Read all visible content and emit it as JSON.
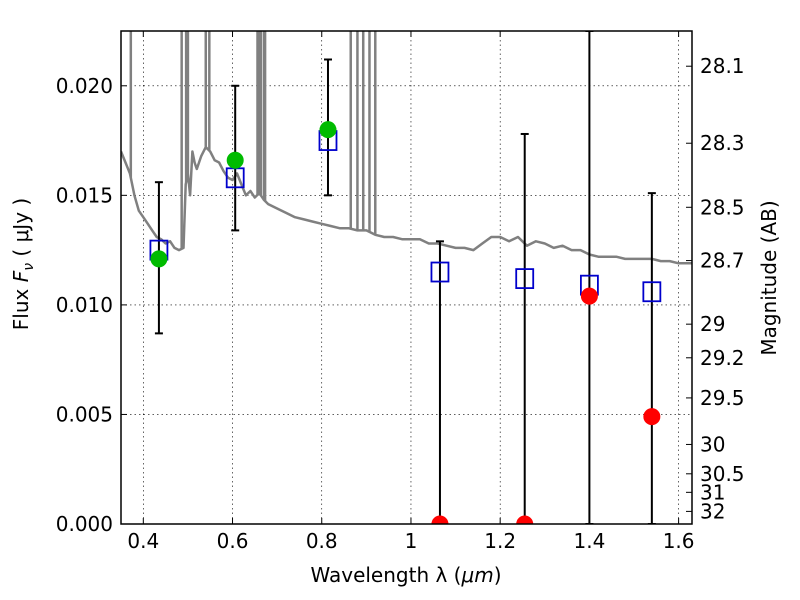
{
  "chart_data": {
    "type": "scatter",
    "x_axis": {
      "label_text": "Wavelength  λ (",
      "label_unit": "μm",
      "label_close": ")",
      "range": [
        0.35,
        1.63
      ],
      "ticks": [
        0.4,
        0.6,
        0.8,
        1.0,
        1.2,
        1.4,
        1.6
      ],
      "tick_labels": [
        "0.4",
        "0.6",
        "0.8",
        "1",
        "1.2",
        "1.4",
        "1.6"
      ]
    },
    "y_axis": {
      "label_text": "Flux  ",
      "label_symbol": "F",
      "label_sub": "ν",
      "label_unit": "  ( μJy )",
      "range": [
        0.0,
        0.0225
      ],
      "ticks": [
        0.0,
        0.005,
        0.01,
        0.015,
        0.02
      ],
      "tick_labels": [
        "0.000",
        "0.005",
        "0.010",
        "0.015",
        "0.020"
      ]
    },
    "y2_axis": {
      "label": "Magnitude (AB)",
      "ticks": [
        28.1,
        28.3,
        28.5,
        28.7,
        29,
        29.2,
        29.5,
        30,
        30.5,
        31,
        32
      ],
      "tick_labels": [
        "28.1",
        "28.3",
        "28.5",
        "28.7",
        "29",
        "29.2",
        "29.5",
        "30",
        "30.5",
        "31",
        "32"
      ]
    },
    "grid": true,
    "colors": {
      "model": "#808080",
      "model_photometry": "#0000cc",
      "detections": "#00bb00",
      "upper_limits": "#ff0000",
      "error_bars": "#000000"
    },
    "series": [
      {
        "kind": "model_spectrum",
        "x": [
          0.35,
          0.37,
          0.38,
          0.39,
          0.4,
          0.41,
          0.42,
          0.43,
          0.44,
          0.45,
          0.46,
          0.47,
          0.48,
          0.49,
          0.495,
          0.5,
          0.505,
          0.51,
          0.515,
          0.52,
          0.53,
          0.54,
          0.55,
          0.56,
          0.57,
          0.58,
          0.59,
          0.6,
          0.61,
          0.62,
          0.63,
          0.64,
          0.65,
          0.66,
          0.67,
          0.68,
          0.7,
          0.72,
          0.74,
          0.76,
          0.78,
          0.8,
          0.82,
          0.84,
          0.86,
          0.88,
          0.9,
          0.92,
          0.94,
          0.96,
          0.98,
          1.0,
          1.02,
          1.04,
          1.06,
          1.08,
          1.1,
          1.12,
          1.14,
          1.16,
          1.18,
          1.2,
          1.22,
          1.24,
          1.26,
          1.28,
          1.3,
          1.32,
          1.34,
          1.36,
          1.38,
          1.4,
          1.42,
          1.44,
          1.46,
          1.48,
          1.5,
          1.52,
          1.54,
          1.56,
          1.58,
          1.6,
          1.63
        ],
        "y": [
          0.017,
          0.016,
          0.015,
          0.0143,
          0.014,
          0.0137,
          0.0134,
          0.0131,
          0.013,
          0.0128,
          0.0129,
          0.0126,
          0.0125,
          0.0126,
          0.0155,
          0.016,
          0.015,
          0.017,
          0.0165,
          0.0162,
          0.0168,
          0.0172,
          0.017,
          0.0166,
          0.0165,
          0.0161,
          0.0158,
          0.0157,
          0.016,
          0.0155,
          0.015,
          0.0152,
          0.0149,
          0.0151,
          0.0148,
          0.0146,
          0.0144,
          0.0142,
          0.014,
          0.0139,
          0.0138,
          0.0137,
          0.0136,
          0.0135,
          0.0135,
          0.0134,
          0.0134,
          0.0132,
          0.0131,
          0.0131,
          0.013,
          0.013,
          0.013,
          0.0128,
          0.0128,
          0.0127,
          0.0126,
          0.0126,
          0.0125,
          0.0128,
          0.0131,
          0.0131,
          0.0129,
          0.0131,
          0.0127,
          0.0129,
          0.0128,
          0.0126,
          0.0127,
          0.0125,
          0.0125,
          0.0123,
          0.0122,
          0.0122,
          0.0122,
          0.0121,
          0.0121,
          0.0121,
          0.0121,
          0.012,
          0.012,
          0.0119,
          0.0119
        ]
      },
      {
        "kind": "emission_lines",
        "x": [
          0.372,
          0.486,
          0.496,
          0.5,
          0.54,
          0.548,
          0.656,
          0.66,
          0.664,
          0.671,
          0.673,
          0.865,
          0.88,
          0.893,
          0.907,
          0.92
        ]
      },
      {
        "kind": "model_photometry",
        "x": [
          0.435,
          0.606,
          0.814,
          1.065,
          1.255,
          1.4,
          1.54
        ],
        "y": [
          0.0125,
          0.0158,
          0.0175,
          0.0115,
          0.0112,
          0.0109,
          0.0106
        ]
      },
      {
        "kind": "detections",
        "x": [
          0.435,
          0.606,
          0.814
        ],
        "y": [
          0.0121,
          0.0166,
          0.018
        ],
        "err_low": [
          0.0087,
          0.0134,
          0.015
        ],
        "err_high": [
          0.0156,
          0.02,
          0.0212
        ]
      },
      {
        "kind": "upper_limits",
        "x": [
          1.065,
          1.255,
          1.4,
          1.54
        ],
        "y": [
          0.0,
          0.0,
          0.0104,
          0.0049
        ],
        "err_low": [
          0.0,
          0.0,
          0.0,
          0.0
        ],
        "err_high": [
          0.0129,
          0.0178,
          0.0225,
          0.0151
        ]
      }
    ]
  }
}
